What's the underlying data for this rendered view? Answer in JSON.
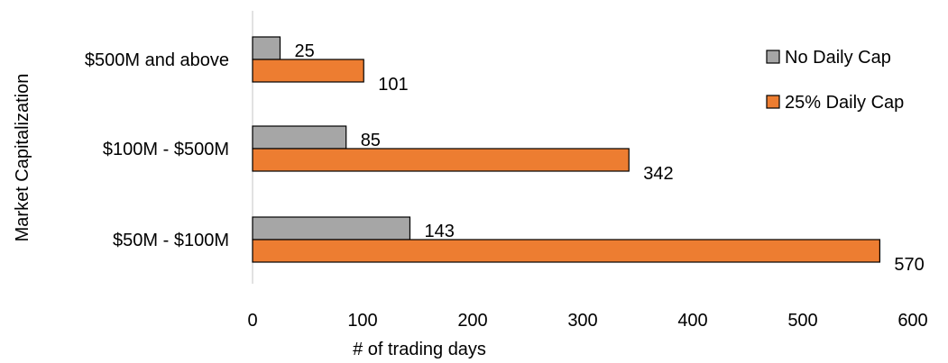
{
  "chart_data": {
    "type": "bar",
    "orientation": "horizontal",
    "title": "",
    "xlabel": "# of trading days",
    "ylabel": "Market Capitalization",
    "categories": [
      "$50M - $100M",
      "$100M - $500M",
      "$500M and above"
    ],
    "series": [
      {
        "name": "No Daily Cap",
        "values": [
          143,
          85,
          25
        ],
        "color": "#A6A6A6"
      },
      {
        "name": "25% Daily Cap",
        "values": [
          570,
          342,
          101
        ],
        "color": "#ED7D31"
      }
    ],
    "xlim": [
      0,
      600
    ],
    "xticks": [
      0,
      100,
      200,
      300,
      400,
      500,
      600
    ],
    "grid": false,
    "legend_position": "top-right",
    "data_labels": true
  }
}
